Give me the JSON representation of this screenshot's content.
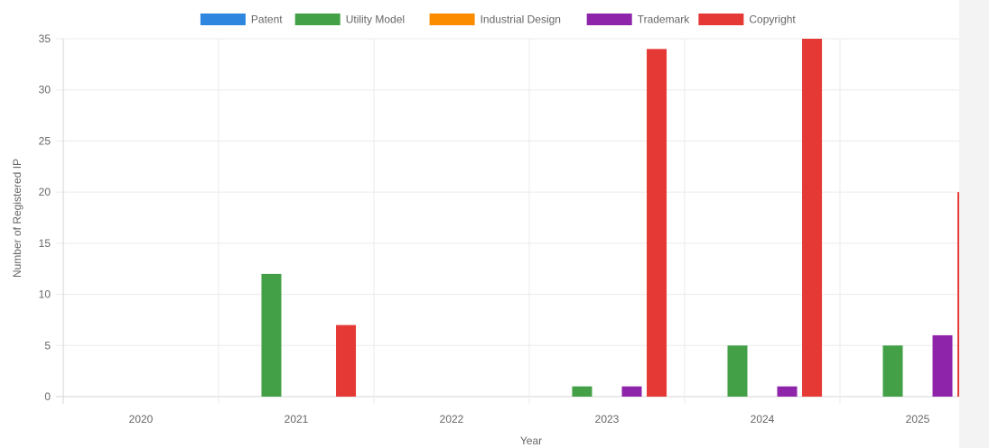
{
  "chart_data": {
    "type": "bar",
    "categories": [
      "2020",
      "2021",
      "2022",
      "2023",
      "2024",
      "2025"
    ],
    "series": [
      {
        "name": "Patent",
        "color": "#2e86de",
        "values": [
          0,
          0,
          0,
          0,
          0,
          0
        ]
      },
      {
        "name": "Utility Model",
        "color": "#43a047",
        "values": [
          0,
          12,
          0,
          1,
          5,
          5
        ]
      },
      {
        "name": "Industrial Design",
        "color": "#fb8c00",
        "values": [
          0,
          0,
          0,
          0,
          0,
          0
        ]
      },
      {
        "name": "Trademark",
        "color": "#8e24aa",
        "values": [
          0,
          0,
          0,
          1,
          1,
          6
        ]
      },
      {
        "name": "Copyright",
        "color": "#e53935",
        "values": [
          0,
          7,
          0,
          34,
          35,
          20
        ]
      }
    ],
    "xlabel": "Year",
    "ylabel": "Number of Registered IP",
    "ylim": [
      0,
      35
    ],
    "yticks": [
      "0",
      "5",
      "10",
      "15",
      "20",
      "25",
      "30",
      "35"
    ],
    "grid": true,
    "legend_position": "top"
  }
}
